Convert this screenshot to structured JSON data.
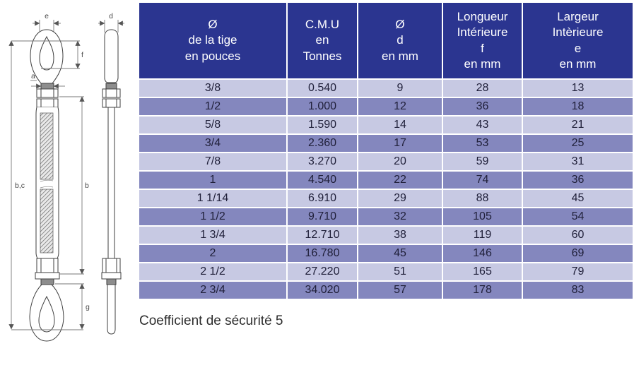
{
  "diagram": {
    "title": "turnbuckle-eye-eye-technical-drawing",
    "labels": {
      "e": "e",
      "d": "d",
      "f": "f",
      "a": "a",
      "bc": "b,c",
      "b": "b",
      "g": "g"
    }
  },
  "table": {
    "headers": [
      {
        "lines": [
          "Ø",
          "de la tige",
          "en pouces"
        ]
      },
      {
        "lines": [
          "C.M.U",
          "en",
          "Tonnes"
        ]
      },
      {
        "lines": [
          "Ø",
          "d",
          "en mm"
        ]
      },
      {
        "lines": [
          "Longueur",
          "Intérieure",
          "f",
          "en mm"
        ]
      },
      {
        "lines": [
          "Largeur",
          "Intèrieure",
          "e",
          "en mm"
        ]
      }
    ],
    "rows": [
      [
        "3/8",
        "0.540",
        "9",
        "28",
        "13"
      ],
      [
        "1/2",
        "1.000",
        "12",
        "36",
        "18"
      ],
      [
        "5/8",
        "1.590",
        "14",
        "43",
        "21"
      ],
      [
        "3/4",
        "2.360",
        "17",
        "53",
        "25"
      ],
      [
        "7/8",
        "3.270",
        "20",
        "59",
        "31"
      ],
      [
        "1",
        "4.540",
        "22",
        "74",
        "36"
      ],
      [
        "1 1/14",
        "6.910",
        "29",
        "88",
        "45"
      ],
      [
        "1 1/2",
        "9.710",
        "32",
        "105",
        "54"
      ],
      [
        "1 3/4",
        "12.710",
        "38",
        "119",
        "60"
      ],
      [
        "2",
        "16.780",
        "45",
        "146",
        "69"
      ],
      [
        "2 1/2",
        "27.220",
        "51",
        "165",
        "79"
      ],
      [
        "2 3/4",
        "34.020",
        "57",
        "178",
        "83"
      ]
    ]
  },
  "footer": {
    "note": "Coefficient de sécurité 5"
  },
  "colors": {
    "header_bg": "#2B3590",
    "header_text": "#FFFFFF",
    "row_light": "#C7C9E3",
    "row_dark": "#8487BE",
    "cell_text": "#20203A",
    "grid": "#FFFFFF"
  }
}
